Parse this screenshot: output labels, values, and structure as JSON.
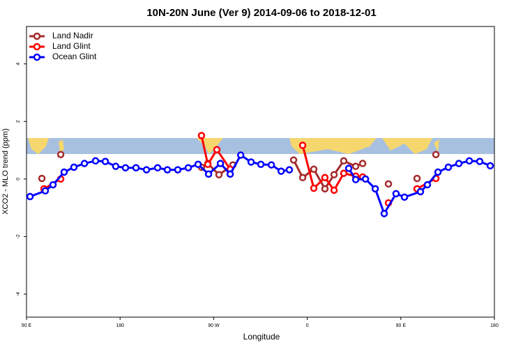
{
  "chart_data": {
    "type": "line",
    "title": "10N-20N June (Ver 9)   2014-09-06 to 2018-12-01",
    "x_label": "Longitude",
    "y_label": "XCO2 - MLO trend (ppm)",
    "xlim": [
      90,
      540
    ],
    "xticks": [
      {
        "value": 90,
        "label": "90 E"
      },
      {
        "value": 180,
        "label": "180"
      },
      {
        "value": 270,
        "label": "90 W"
      },
      {
        "value": 360,
        "label": "0"
      },
      {
        "value": 450,
        "label": "90 E"
      },
      {
        "value": 540,
        "label": "180"
      }
    ],
    "ylim": [
      -4.8,
      5.3
    ],
    "yticks": [
      -4,
      -2,
      0,
      2,
      4
    ],
    "legend": "top-left",
    "series": [
      {
        "name": "Land Nadir",
        "color": "#a52a2a",
        "x": [
          104.8,
          null,
          122.9,
          null,
          258.3,
          264.4,
          275.1,
          288.5,
          null,
          346.9,
          355.6,
          366.3,
          377.0,
          385.8,
          395.1,
          406.6,
          413.3,
          null,
          438.1,
          null,
          465.6,
          null,
          483.7
        ],
        "values": [
          0.02,
          null,
          0.85,
          null,
          0.41,
          0.54,
          0.15,
          0.49,
          null,
          0.66,
          0.05,
          0.34,
          -0.34,
          0.15,
          0.63,
          0.44,
          0.54,
          null,
          -0.17,
          null,
          0.02,
          null,
          0.85
        ]
      },
      {
        "name": "Land Glint",
        "color": "#ff0000",
        "x": [
          106.8,
          122.9,
          null,
          258.3,
          264.4,
          273.1,
          285.9,
          null,
          355.6,
          366.3,
          377.0,
          385.8,
          395.1,
          406.6,
          413.3,
          null,
          438.1,
          null,
          465.6,
          483.7
        ],
        "values": [
          -0.34,
          0.0,
          null,
          1.51,
          0.51,
          1.02,
          0.34,
          null,
          1.17,
          -0.32,
          0.05,
          -0.39,
          0.2,
          0.1,
          0.07,
          null,
          -0.83,
          null,
          -0.34,
          0.02
        ]
      },
      {
        "name": "Ocean Glint",
        "color": "#0000ff",
        "x": [
          93.4,
          108.1,
          115.5,
          126.2,
          135.6,
          145.7,
          156.4,
          165.8,
          175.8,
          185.2,
          195.3,
          205.4,
          216.1,
          225.5,
          235.5,
          245.6,
          255.0,
          265.1,
          276.5,
          285.9,
          296.0,
          306.0,
          315.4,
          325.5,
          334.9,
          342.8,
          null,
          399.9,
          406.6,
          416.0,
          425.4,
          434.0,
          445.4,
          453.5,
          468.9,
          475.6,
          485.7,
          495.7,
          505.8,
          515.9,
          525.9,
          536.0
        ],
        "values": [
          -0.61,
          -0.41,
          -0.2,
          0.24,
          0.41,
          0.54,
          0.63,
          0.61,
          0.44,
          0.39,
          0.39,
          0.32,
          0.39,
          0.32,
          0.32,
          0.39,
          0.51,
          0.17,
          0.54,
          0.17,
          0.83,
          0.59,
          0.51,
          0.49,
          0.27,
          0.32,
          null,
          0.37,
          -0.02,
          0.0,
          -0.34,
          -1.2,
          -0.51,
          -0.63,
          -0.44,
          -0.2,
          0.24,
          0.41,
          0.54,
          0.63,
          0.61,
          0.46
        ]
      }
    ]
  }
}
